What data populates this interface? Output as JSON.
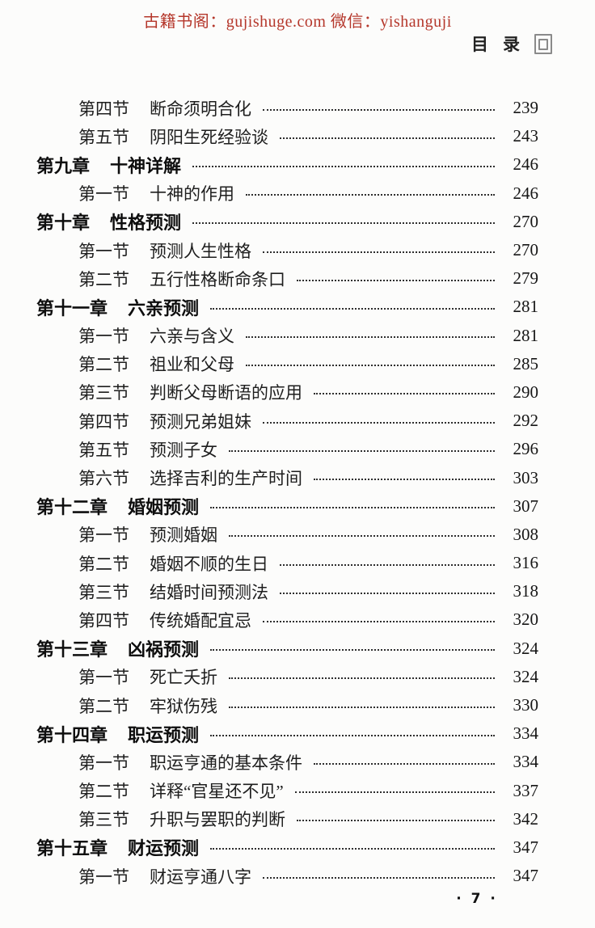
{
  "header": {
    "watermark": "古籍书阁：gujishuge.com 微信：yishanguji",
    "corner": {
      "char_mu": "目",
      "char_lu": "录",
      "box_icon": "nested-square-icon"
    }
  },
  "toc": {
    "entries": [
      {
        "level": "section",
        "prefix": "第四节",
        "title": "断命须明合化",
        "page": "239"
      },
      {
        "level": "section",
        "prefix": "第五节",
        "title": "阴阳生死经验谈",
        "page": "243"
      },
      {
        "level": "chapter",
        "prefix": "第九章",
        "title": "十神详解",
        "page": "246"
      },
      {
        "level": "section",
        "prefix": "第一节",
        "title": "十神的作用",
        "page": "246"
      },
      {
        "level": "chapter",
        "prefix": "第十章",
        "title": "性格预测",
        "page": "270"
      },
      {
        "level": "section",
        "prefix": "第一节",
        "title": "预测人生性格",
        "page": "270"
      },
      {
        "level": "section",
        "prefix": "第二节",
        "title": "五行性格断命条口",
        "page": "279"
      },
      {
        "level": "chapter",
        "prefix": "第十一章",
        "title": "六亲预测",
        "page": "281"
      },
      {
        "level": "section",
        "prefix": "第一节",
        "title": "六亲与含义",
        "page": "281"
      },
      {
        "level": "section",
        "prefix": "第二节",
        "title": "祖业和父母",
        "page": "285"
      },
      {
        "level": "section",
        "prefix": "第三节",
        "title": "判断父母断语的应用",
        "page": "290"
      },
      {
        "level": "section",
        "prefix": "第四节",
        "title": "预测兄弟姐妹",
        "page": "292"
      },
      {
        "level": "section",
        "prefix": "第五节",
        "title": "预测子女",
        "page": "296"
      },
      {
        "level": "section",
        "prefix": "第六节",
        "title": "选择吉利的生产时间",
        "page": "303"
      },
      {
        "level": "chapter",
        "prefix": "第十二章",
        "title": "婚姻预测",
        "page": "307"
      },
      {
        "level": "section",
        "prefix": "第一节",
        "title": "预测婚姻",
        "page": "308"
      },
      {
        "level": "section",
        "prefix": "第二节",
        "title": "婚姻不顺的生日",
        "page": "316"
      },
      {
        "level": "section",
        "prefix": "第三节",
        "title": "结婚时间预测法",
        "page": "318"
      },
      {
        "level": "section",
        "prefix": "第四节",
        "title": "传统婚配宜忌",
        "page": "320"
      },
      {
        "level": "chapter",
        "prefix": "第十三章",
        "title": "凶祸预测",
        "page": "324"
      },
      {
        "level": "section",
        "prefix": "第一节",
        "title": "死亡夭折",
        "page": "324"
      },
      {
        "level": "section",
        "prefix": "第二节",
        "title": "牢狱伤残",
        "page": "330"
      },
      {
        "level": "chapter",
        "prefix": "第十四章",
        "title": "职运预测",
        "page": "334"
      },
      {
        "level": "section",
        "prefix": "第一节",
        "title": "职运亨通的基本条件",
        "page": "334"
      },
      {
        "level": "section",
        "prefix": "第二节",
        "title": "详释“官星还不见”",
        "page": "337"
      },
      {
        "level": "section",
        "prefix": "第三节",
        "title": "升职与罢职的判断",
        "page": "342"
      },
      {
        "level": "chapter",
        "prefix": "第十五章",
        "title": "财运预测",
        "page": "347"
      },
      {
        "level": "section",
        "prefix": "第一节",
        "title": "财运亨通八字",
        "page": "347"
      }
    ]
  },
  "footer": {
    "page_number": "· 7 ·"
  },
  "colors": {
    "watermark_red": "#b5372b",
    "body_text": "#1b1b1b",
    "icon_gray": "#8a8a8a",
    "background": "#fcfcfb"
  }
}
